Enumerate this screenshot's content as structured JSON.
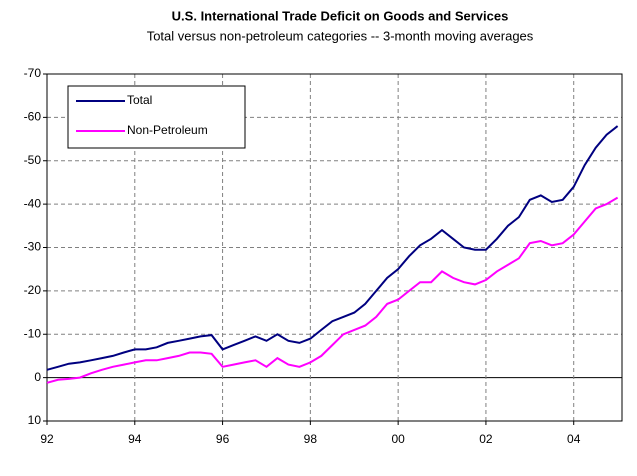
{
  "chart_data": {
    "type": "line",
    "title": "U.S. International Trade Deficit on Goods and Services",
    "subtitle": "Total versus non-petroleum categories -- 3-month moving averages",
    "x": [
      1992,
      1992.25,
      1992.5,
      1992.75,
      1993,
      1993.25,
      1993.5,
      1993.75,
      1994,
      1994.25,
      1994.5,
      1994.75,
      1995,
      1995.25,
      1995.5,
      1995.75,
      1996,
      1996.25,
      1996.5,
      1996.75,
      1997,
      1997.25,
      1997.5,
      1997.75,
      1998,
      1998.25,
      1998.5,
      1998.75,
      1999,
      1999.25,
      1999.5,
      1999.75,
      2000,
      2000.25,
      2000.5,
      2000.75,
      2001,
      2001.25,
      2001.5,
      2001.75,
      2002,
      2002.25,
      2002.5,
      2002.75,
      2003,
      2003.25,
      2003.5,
      2003.75,
      2004,
      2004.25,
      2004.5,
      2004.75,
      2005
    ],
    "series": [
      {
        "name": "Total",
        "color": "#000080",
        "values": [
          -1.8,
          -2.5,
          -3.2,
          -3.5,
          -4,
          -4.5,
          -5,
          -5.8,
          -6.5,
          -6.5,
          -7,
          -8,
          -8.5,
          -9,
          -9.5,
          -9.8,
          -6.5,
          -7.5,
          -8.5,
          -9.5,
          -8.5,
          -10,
          -8.5,
          -8,
          -9,
          -11,
          -13,
          -14,
          -15,
          -17,
          -20,
          -23,
          -25,
          -28,
          -30.5,
          -32,
          -34,
          -32,
          -30,
          -29.5,
          -29.5,
          -32,
          -35,
          -37,
          -41,
          -42,
          -40.5,
          -41,
          -44,
          -49,
          -53,
          -56,
          -58
        ]
      },
      {
        "name": "Non-Petroleum",
        "color": "#ff00ff",
        "values": [
          1.2,
          0.5,
          0.3,
          0,
          -1,
          -1.8,
          -2.5,
          -3,
          -3.5,
          -4,
          -4,
          -4.5,
          -5,
          -5.8,
          -5.8,
          -5.5,
          -2.5,
          -3,
          -3.5,
          -4,
          -2.5,
          -4.5,
          -3,
          -2.5,
          -3.5,
          -5,
          -7.5,
          -10,
          -11,
          -12,
          -14,
          -17,
          -18,
          -20,
          -22,
          -22,
          -24.5,
          -23,
          -22,
          -21.5,
          -22.5,
          -24.5,
          -26,
          -27.5,
          -31,
          -31.5,
          -30.5,
          -31,
          -33,
          -36,
          -39,
          -40,
          -41.5
        ]
      }
    ],
    "xlim": [
      1992,
      2005.1
    ],
    "xticks": [
      {
        "value": 1992,
        "label": "92"
      },
      {
        "value": 1994,
        "label": "94"
      },
      {
        "value": 1996,
        "label": "96"
      },
      {
        "value": 1998,
        "label": "98"
      },
      {
        "value": 2000,
        "label": "00"
      },
      {
        "value": 2002,
        "label": "02"
      },
      {
        "value": 2004,
        "label": "04"
      }
    ],
    "ylim": [
      10,
      -70
    ],
    "yticks": [
      -70,
      -60,
      -50,
      -40,
      -30,
      -20,
      -10,
      0,
      10
    ],
    "grid": true,
    "legend": "upper left"
  }
}
